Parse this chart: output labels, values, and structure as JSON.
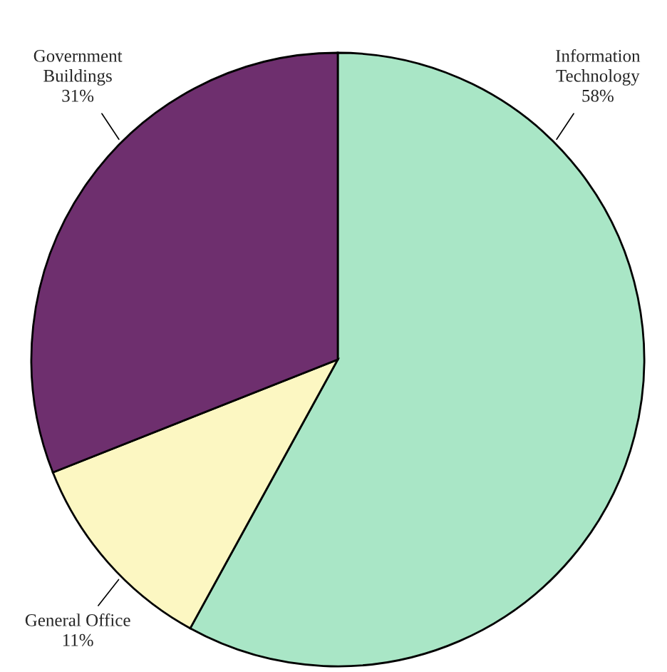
{
  "chart_data": {
    "type": "pie",
    "categories": [
      "Information\nTechnology",
      "General Office",
      "Government\nBuildings"
    ],
    "values": [
      58,
      11,
      31
    ],
    "value_labels": [
      "58%",
      "11%",
      "31%"
    ],
    "colors": [
      "#a9e6c6",
      "#fcf7c2",
      "#6e2f6e"
    ]
  }
}
